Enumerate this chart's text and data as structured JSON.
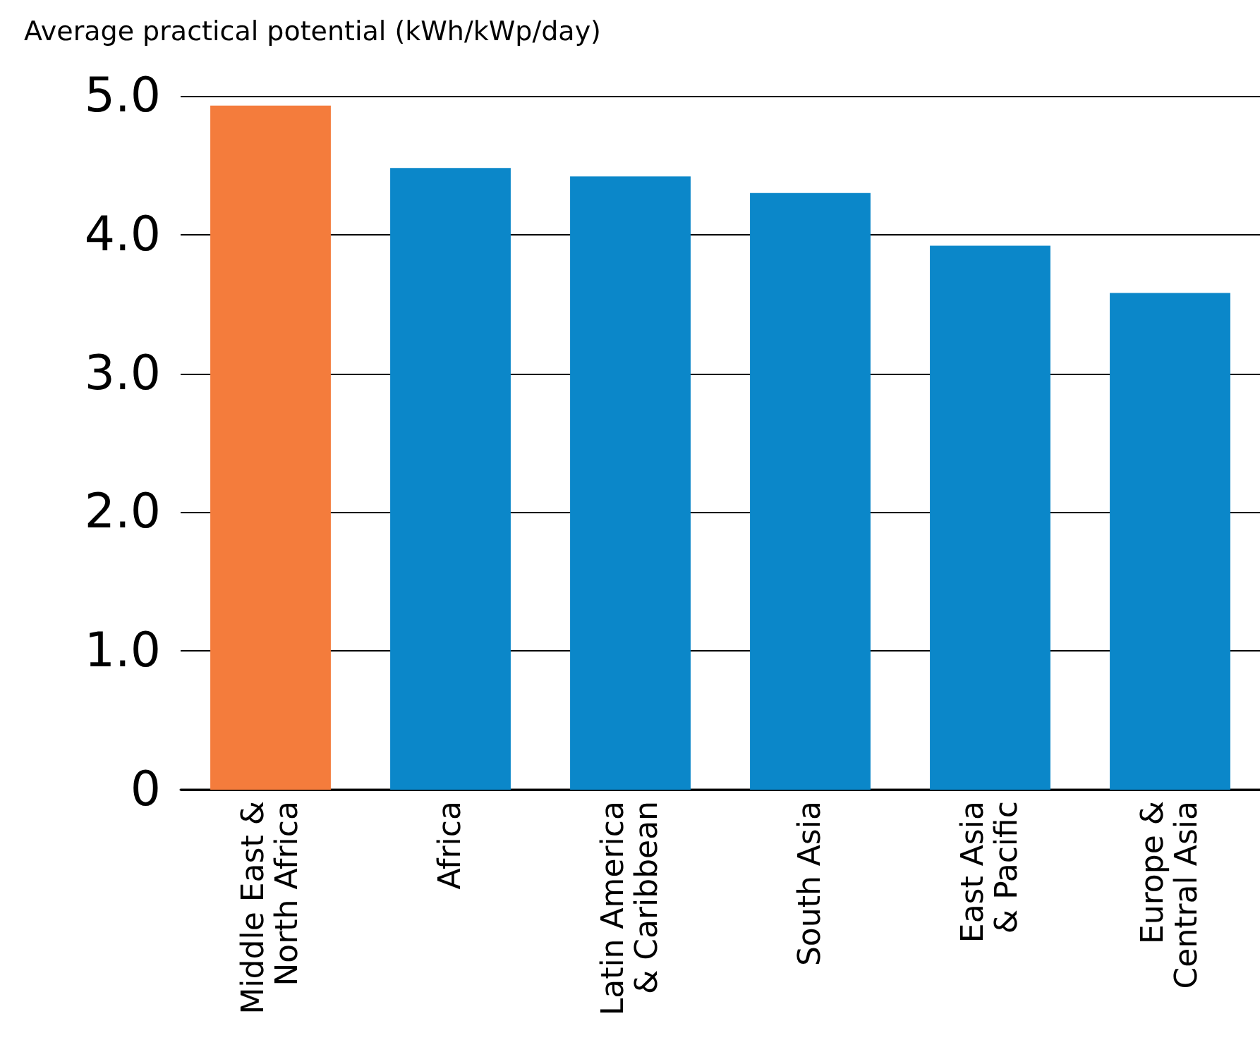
{
  "chart_data": {
    "type": "bar",
    "title": "Average practical potential (kWh/kWp/day)",
    "categories": [
      "Middle East &\nNorth Africa",
      "Africa",
      "Latin America\n& Caribbean",
      "South Asia",
      "East Asia\n& Pacific",
      "Europe &\nCentral Asia"
    ],
    "values": [
      4.93,
      4.48,
      4.42,
      4.3,
      3.92,
      3.58
    ],
    "colors": [
      "#f47c3c",
      "#0b87c9",
      "#0b87c9",
      "#0b87c9",
      "#0b87c9",
      "#0b87c9"
    ],
    "ylim": [
      0,
      5
    ],
    "yticks": [
      0,
      {
        "value": 1,
        "label": "1.0"
      },
      {
        "value": 2,
        "label": "2.0"
      },
      {
        "value": 3,
        "label": "3.0"
      },
      {
        "value": 4,
        "label": "4.0"
      },
      {
        "value": 5,
        "label": "5.0"
      }
    ],
    "grid": "y"
  }
}
